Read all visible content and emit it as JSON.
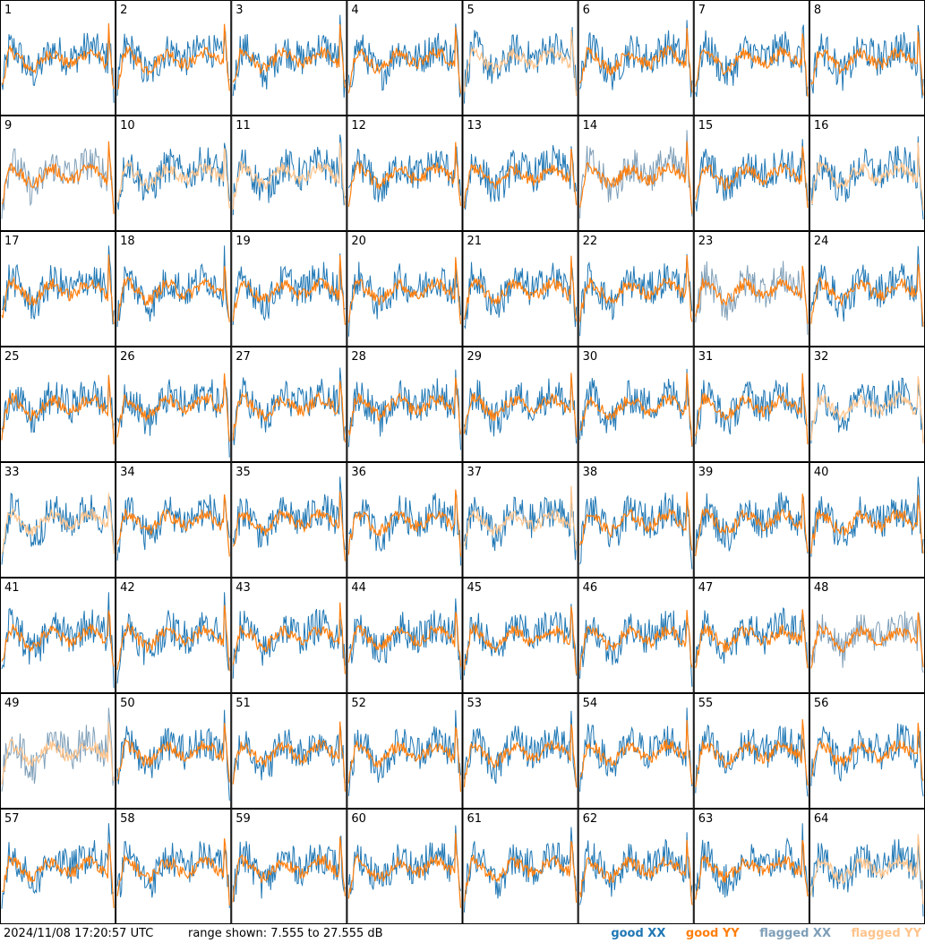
{
  "footer": {
    "timestamp": "2024/11/08 17:20:57 UTC",
    "range": "range shown: 7.555 to 27.555 dB"
  },
  "legend": [
    {
      "label": "good XX",
      "color": "#1f77b4"
    },
    {
      "label": "good YY",
      "color": "#ff7f0e"
    },
    {
      "label": "flagged XX",
      "color": "#7f9fb8"
    },
    {
      "label": "flagged YY",
      "color": "#ffc48c"
    }
  ],
  "chart_data": {
    "type": "line",
    "grid_rows": 8,
    "grid_cols": 8,
    "y_range_db": [
      7.555,
      27.555
    ],
    "panels": [
      {
        "id": "1",
        "xx": "good",
        "yy": "good"
      },
      {
        "id": "2",
        "xx": "good",
        "yy": "good"
      },
      {
        "id": "3",
        "xx": "good",
        "yy": "good"
      },
      {
        "id": "4",
        "xx": "good",
        "yy": "good"
      },
      {
        "id": "5",
        "xx": "good",
        "yy": "flagged"
      },
      {
        "id": "6",
        "xx": "good",
        "yy": "good"
      },
      {
        "id": "7",
        "xx": "good",
        "yy": "good"
      },
      {
        "id": "8",
        "xx": "good",
        "yy": "good"
      },
      {
        "id": "9",
        "xx": "flagged",
        "yy": "good"
      },
      {
        "id": "10",
        "xx": "good",
        "yy": "flagged"
      },
      {
        "id": "11",
        "xx": "good",
        "yy": "flagged"
      },
      {
        "id": "12",
        "xx": "good",
        "yy": "good"
      },
      {
        "id": "13",
        "xx": "good",
        "yy": "good"
      },
      {
        "id": "14",
        "xx": "flagged",
        "yy": "good"
      },
      {
        "id": "15",
        "xx": "good",
        "yy": "good"
      },
      {
        "id": "16",
        "xx": "good",
        "yy": "flagged"
      },
      {
        "id": "17",
        "xx": "good",
        "yy": "good"
      },
      {
        "id": "18",
        "xx": "good",
        "yy": "good"
      },
      {
        "id": "19",
        "xx": "good",
        "yy": "good"
      },
      {
        "id": "20",
        "xx": "good",
        "yy": "good"
      },
      {
        "id": "21",
        "xx": "good",
        "yy": "good"
      },
      {
        "id": "22",
        "xx": "good",
        "yy": "good"
      },
      {
        "id": "23",
        "xx": "flagged",
        "yy": "good"
      },
      {
        "id": "24",
        "xx": "good",
        "yy": "good"
      },
      {
        "id": "25",
        "xx": "good",
        "yy": "good"
      },
      {
        "id": "26",
        "xx": "good",
        "yy": "good"
      },
      {
        "id": "27",
        "xx": "good",
        "yy": "good"
      },
      {
        "id": "28",
        "xx": "good",
        "yy": "good"
      },
      {
        "id": "29",
        "xx": "good",
        "yy": "good"
      },
      {
        "id": "30",
        "xx": "good",
        "yy": "good"
      },
      {
        "id": "31",
        "xx": "good",
        "yy": "good"
      },
      {
        "id": "32",
        "xx": "good",
        "yy": "flagged"
      },
      {
        "id": "33",
        "xx": "good",
        "yy": "flagged"
      },
      {
        "id": "34",
        "xx": "good",
        "yy": "good"
      },
      {
        "id": "35",
        "xx": "good",
        "yy": "good"
      },
      {
        "id": "36",
        "xx": "good",
        "yy": "good"
      },
      {
        "id": "37",
        "xx": "good",
        "yy": "flagged"
      },
      {
        "id": "38",
        "xx": "good",
        "yy": "good"
      },
      {
        "id": "39",
        "xx": "good",
        "yy": "good"
      },
      {
        "id": "40",
        "xx": "good",
        "yy": "good"
      },
      {
        "id": "41",
        "xx": "good",
        "yy": "good"
      },
      {
        "id": "42",
        "xx": "good",
        "yy": "good"
      },
      {
        "id": "43",
        "xx": "good",
        "yy": "good"
      },
      {
        "id": "44",
        "xx": "good",
        "yy": "good"
      },
      {
        "id": "45",
        "xx": "good",
        "yy": "good"
      },
      {
        "id": "46",
        "xx": "good",
        "yy": "good"
      },
      {
        "id": "47",
        "xx": "good",
        "yy": "good"
      },
      {
        "id": "48",
        "xx": "flagged",
        "yy": "good"
      },
      {
        "id": "49",
        "xx": "flagged",
        "yy": "flagged"
      },
      {
        "id": "50",
        "xx": "good",
        "yy": "good"
      },
      {
        "id": "51",
        "xx": "good",
        "yy": "good"
      },
      {
        "id": "52",
        "xx": "good",
        "yy": "good"
      },
      {
        "id": "53",
        "xx": "good",
        "yy": "good"
      },
      {
        "id": "54",
        "xx": "good",
        "yy": "good"
      },
      {
        "id": "55",
        "xx": "good",
        "yy": "good"
      },
      {
        "id": "56",
        "xx": "good",
        "yy": "good"
      },
      {
        "id": "57",
        "xx": "good",
        "yy": "good"
      },
      {
        "id": "58",
        "xx": "good",
        "yy": "good"
      },
      {
        "id": "59",
        "xx": "good",
        "yy": "good"
      },
      {
        "id": "60",
        "xx": "good",
        "yy": "good"
      },
      {
        "id": "61",
        "xx": "good",
        "yy": "good"
      },
      {
        "id": "62",
        "xx": "good",
        "yy": "good"
      },
      {
        "id": "63",
        "xx": "good",
        "yy": "good"
      },
      {
        "id": "64",
        "xx": "good",
        "yy": "flagged"
      }
    ]
  }
}
